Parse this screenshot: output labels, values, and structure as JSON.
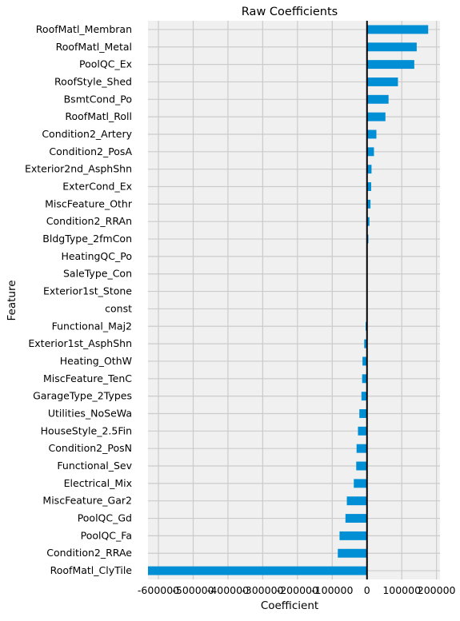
{
  "chart_data": {
    "type": "bar",
    "orientation": "horizontal",
    "title": "Raw Coefficients",
    "xlabel": "Coefficient",
    "ylabel": "Feature",
    "xlim": [
      -630000,
      210000
    ],
    "xticks": [
      -600000,
      -500000,
      -400000,
      -300000,
      -200000,
      -100000,
      0,
      100000,
      200000
    ],
    "grid": true,
    "bar_color": "#008fd5",
    "background_color": "#f0f0f0",
    "zero_line_color": "#000000",
    "categories": [
      "RoofMatl_Membran",
      "RoofMatl_Metal",
      "PoolQC_Ex",
      "RoofStyle_Shed",
      "BsmtCond_Po",
      "RoofMatl_Roll",
      "Condition2_Artery",
      "Condition2_PosA",
      "Exterior2nd_AsphShn",
      "ExterCond_Ex",
      "MiscFeature_Othr",
      "Condition2_RRAn",
      "BldgType_2fmCon",
      "HeatingQC_Po",
      "SaleType_Con",
      "Exterior1st_Stone",
      "const",
      "Functional_Maj2",
      "Exterior1st_AsphShn",
      "Heating_OthW",
      "MiscFeature_TenC",
      "GarageType_2Types",
      "Utilities_NoSeWa",
      "HouseStyle_2.5Fin",
      "Condition2_PosN",
      "Functional_Sev",
      "Electrical_Mix",
      "MiscFeature_Gar2",
      "PoolQC_Gd",
      "PoolQC_Fa",
      "Condition2_RRAe",
      "RoofMatl_ClyTile"
    ],
    "values": [
      176000,
      143000,
      136000,
      89000,
      62000,
      53000,
      27000,
      20000,
      13000,
      12000,
      10000,
      7000,
      4000,
      0,
      0,
      0,
      0,
      -4000,
      -8000,
      -13000,
      -14000,
      -16000,
      -22000,
      -26000,
      -30000,
      -31000,
      -38000,
      -58000,
      -62000,
      -79000,
      -84000,
      -630000
    ]
  }
}
